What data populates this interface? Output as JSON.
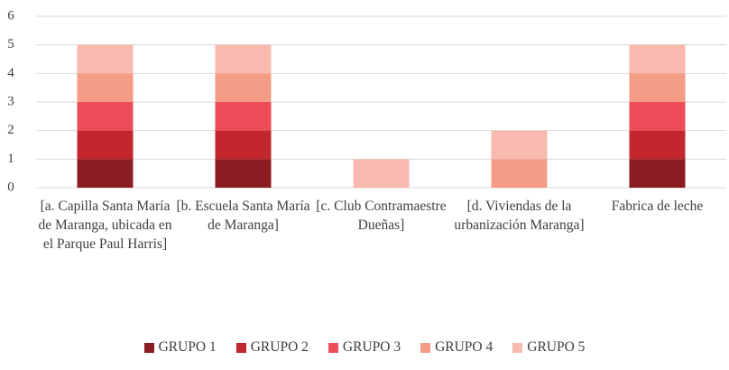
{
  "chart_data": {
    "type": "stacked_bar",
    "categories": [
      "[a. Capilla Santa María de Maranga, ubicada en el Parque Paul Harris]",
      "[b. Escuela Santa María de Maranga]",
      "[c. Club Contramaestre Dueñas]",
      "[d. Viviendas de la urbanización Maranga]",
      "Fabrica de leche"
    ],
    "series": [
      {
        "name": "GRUPO 1",
        "color": "#8b1c22",
        "values": [
          1,
          1,
          0,
          0,
          1
        ]
      },
      {
        "name": "GRUPO 2",
        "color": "#c1272d",
        "values": [
          1,
          1,
          0,
          0,
          1
        ]
      },
      {
        "name": "GRUPO 3",
        "color": "#ee4c58",
        "values": [
          1,
          1,
          0,
          0,
          1
        ]
      },
      {
        "name": "GRUPO 4",
        "color": "#f59c86",
        "values": [
          1,
          1,
          0,
          1,
          1
        ]
      },
      {
        "name": "GRUPO 5",
        "color": "#f8b9ae",
        "values": [
          1,
          1,
          1,
          1,
          1
        ]
      }
    ],
    "ylim": [
      0,
      6
    ],
    "yticks": [
      0,
      1,
      2,
      3,
      4,
      5,
      6
    ],
    "grid": true,
    "legend": "bottom"
  }
}
